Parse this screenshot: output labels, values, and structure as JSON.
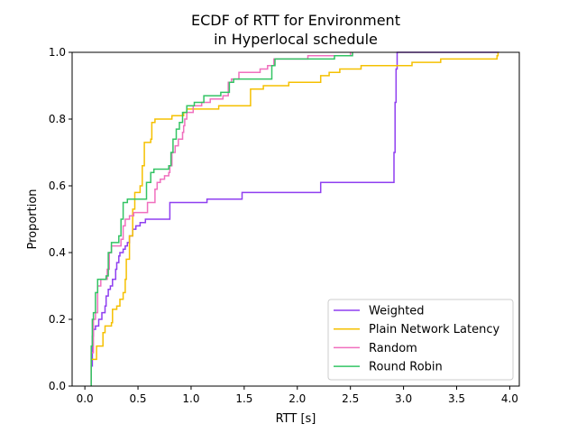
{
  "chart_data": {
    "type": "line",
    "subtype": "ecdf-step",
    "title_lines": [
      "ECDF of RTT for Environment",
      "in Hyperlocal schedule"
    ],
    "xlabel": "RTT [s]",
    "ylabel": "Proportion",
    "xlim": [
      -0.12,
      4.09
    ],
    "ylim": [
      0.0,
      1.0
    ],
    "xticks": [
      0.0,
      0.5,
      1.0,
      1.5,
      2.0,
      2.5,
      3.0,
      3.5,
      4.0
    ],
    "xtick_labels": [
      "0.0",
      "0.5",
      "1.0",
      "1.5",
      "2.0",
      "2.5",
      "3.0",
      "3.5",
      "4.0"
    ],
    "yticks": [
      0.0,
      0.2,
      0.4,
      0.6,
      0.8,
      1.0
    ],
    "ytick_labels": [
      "0.0",
      "0.2",
      "0.4",
      "0.6",
      "0.8",
      "1.0"
    ],
    "grid": false,
    "legend_position": "lower-right",
    "series": [
      {
        "name": "Weighted",
        "color": "#8f3ff0",
        "points": [
          [
            0.06,
            0.0
          ],
          [
            0.06,
            0.06
          ],
          [
            0.07,
            0.15
          ],
          [
            0.08,
            0.17
          ],
          [
            0.1,
            0.18
          ],
          [
            0.13,
            0.2
          ],
          [
            0.16,
            0.22
          ],
          [
            0.19,
            0.24
          ],
          [
            0.2,
            0.27
          ],
          [
            0.22,
            0.29
          ],
          [
            0.24,
            0.3
          ],
          [
            0.26,
            0.32
          ],
          [
            0.29,
            0.35
          ],
          [
            0.3,
            0.37
          ],
          [
            0.32,
            0.39
          ],
          [
            0.33,
            0.4
          ],
          [
            0.36,
            0.41
          ],
          [
            0.38,
            0.42
          ],
          [
            0.4,
            0.43
          ],
          [
            0.42,
            0.45
          ],
          [
            0.45,
            0.47
          ],
          [
            0.48,
            0.48
          ],
          [
            0.52,
            0.49
          ],
          [
            0.57,
            0.5
          ],
          [
            0.8,
            0.5
          ],
          [
            0.8,
            0.55
          ],
          [
            0.95,
            0.55
          ],
          [
            0.95,
            0.55
          ],
          [
            1.14,
            0.55
          ],
          [
            1.15,
            0.56
          ],
          [
            1.47,
            0.56
          ],
          [
            1.48,
            0.58
          ],
          [
            2.2,
            0.58
          ],
          [
            2.22,
            0.61
          ],
          [
            2.9,
            0.61
          ],
          [
            2.91,
            0.7
          ],
          [
            2.92,
            0.85
          ],
          [
            2.93,
            0.95
          ],
          [
            2.94,
            1.0
          ],
          [
            3.9,
            1.0
          ]
        ]
      },
      {
        "name": "Plain Network Latency",
        "color": "#f5c000",
        "points": [
          [
            0.06,
            0.0
          ],
          [
            0.06,
            0.08
          ],
          [
            0.1,
            0.08
          ],
          [
            0.11,
            0.12
          ],
          [
            0.16,
            0.12
          ],
          [
            0.17,
            0.16
          ],
          [
            0.19,
            0.18
          ],
          [
            0.25,
            0.19
          ],
          [
            0.26,
            0.23
          ],
          [
            0.3,
            0.24
          ],
          [
            0.33,
            0.26
          ],
          [
            0.36,
            0.28
          ],
          [
            0.38,
            0.32
          ],
          [
            0.39,
            0.38
          ],
          [
            0.42,
            0.45
          ],
          [
            0.45,
            0.53
          ],
          [
            0.47,
            0.58
          ],
          [
            0.52,
            0.6
          ],
          [
            0.54,
            0.66
          ],
          [
            0.56,
            0.73
          ],
          [
            0.62,
            0.74
          ],
          [
            0.63,
            0.79
          ],
          [
            0.66,
            0.8
          ],
          [
            0.8,
            0.8
          ],
          [
            0.82,
            0.81
          ],
          [
            0.93,
            0.82
          ],
          [
            0.96,
            0.83
          ],
          [
            1.25,
            0.83
          ],
          [
            1.26,
            0.84
          ],
          [
            1.55,
            0.84
          ],
          [
            1.56,
            0.89
          ],
          [
            1.68,
            0.9
          ],
          [
            1.9,
            0.9
          ],
          [
            1.92,
            0.91
          ],
          [
            2.2,
            0.91
          ],
          [
            2.22,
            0.93
          ],
          [
            2.3,
            0.94
          ],
          [
            2.4,
            0.95
          ],
          [
            2.6,
            0.96
          ],
          [
            3.05,
            0.96
          ],
          [
            3.08,
            0.97
          ],
          [
            3.35,
            0.98
          ],
          [
            3.85,
            0.98
          ],
          [
            3.88,
            0.99
          ],
          [
            3.89,
            1.0
          ]
        ]
      },
      {
        "name": "Random",
        "color": "#f06fbe",
        "points": [
          [
            0.06,
            0.0
          ],
          [
            0.06,
            0.1
          ],
          [
            0.08,
            0.2
          ],
          [
            0.1,
            0.22
          ],
          [
            0.12,
            0.3
          ],
          [
            0.15,
            0.32
          ],
          [
            0.21,
            0.35
          ],
          [
            0.23,
            0.4
          ],
          [
            0.25,
            0.42
          ],
          [
            0.34,
            0.44
          ],
          [
            0.36,
            0.48
          ],
          [
            0.38,
            0.5
          ],
          [
            0.42,
            0.51
          ],
          [
            0.46,
            0.52
          ],
          [
            0.57,
            0.52
          ],
          [
            0.59,
            0.55
          ],
          [
            0.66,
            0.59
          ],
          [
            0.68,
            0.61
          ],
          [
            0.71,
            0.62
          ],
          [
            0.75,
            0.63
          ],
          [
            0.79,
            0.64
          ],
          [
            0.8,
            0.66
          ],
          [
            0.82,
            0.7
          ],
          [
            0.85,
            0.72
          ],
          [
            0.88,
            0.74
          ],
          [
            0.92,
            0.76
          ],
          [
            0.93,
            0.78
          ],
          [
            0.94,
            0.8
          ],
          [
            0.96,
            0.82
          ],
          [
            1.02,
            0.84
          ],
          [
            1.1,
            0.85
          ],
          [
            1.18,
            0.86
          ],
          [
            1.3,
            0.87
          ],
          [
            1.35,
            0.91
          ],
          [
            1.38,
            0.92
          ],
          [
            1.45,
            0.94
          ],
          [
            1.6,
            0.94
          ],
          [
            1.65,
            0.95
          ],
          [
            1.72,
            0.96
          ],
          [
            1.78,
            0.98
          ],
          [
            2.0,
            0.98
          ],
          [
            2.1,
            0.99
          ],
          [
            2.5,
            1.0
          ]
        ]
      },
      {
        "name": "Round Robin",
        "color": "#33c464",
        "points": [
          [
            0.06,
            0.0
          ],
          [
            0.06,
            0.12
          ],
          [
            0.07,
            0.2
          ],
          [
            0.08,
            0.22
          ],
          [
            0.1,
            0.28
          ],
          [
            0.12,
            0.32
          ],
          [
            0.2,
            0.33
          ],
          [
            0.22,
            0.4
          ],
          [
            0.25,
            0.43
          ],
          [
            0.32,
            0.45
          ],
          [
            0.34,
            0.5
          ],
          [
            0.36,
            0.55
          ],
          [
            0.4,
            0.56
          ],
          [
            0.56,
            0.56
          ],
          [
            0.58,
            0.61
          ],
          [
            0.62,
            0.64
          ],
          [
            0.65,
            0.65
          ],
          [
            0.79,
            0.66
          ],
          [
            0.81,
            0.7
          ],
          [
            0.83,
            0.74
          ],
          [
            0.86,
            0.77
          ],
          [
            0.89,
            0.79
          ],
          [
            0.92,
            0.82
          ],
          [
            0.96,
            0.84
          ],
          [
            1.03,
            0.85
          ],
          [
            1.12,
            0.87
          ],
          [
            1.28,
            0.88
          ],
          [
            1.36,
            0.91
          ],
          [
            1.4,
            0.92
          ],
          [
            1.72,
            0.92
          ],
          [
            1.76,
            0.96
          ],
          [
            1.79,
            0.98
          ],
          [
            2.35,
            0.99
          ],
          [
            2.52,
            1.0
          ]
        ]
      }
    ]
  }
}
